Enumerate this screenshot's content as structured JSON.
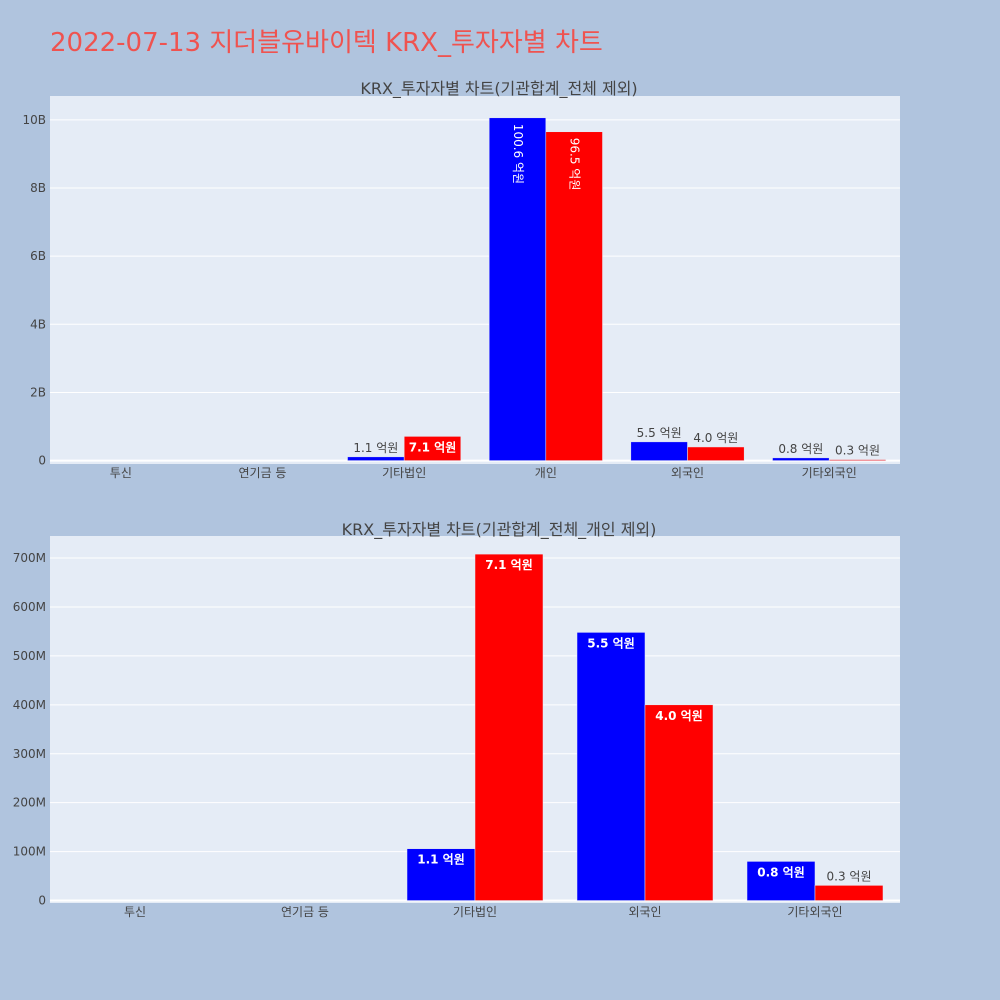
{
  "page": {
    "title": "2022-07-13 지더블유바이텍 KRX_투자자별 차트"
  },
  "colors": {
    "background": "#b0c4de",
    "plot_bg": "#e5ecf6",
    "gridline": "#ffffff",
    "series_blue": "#0000ff",
    "series_red": "#ff0000",
    "title_color": "#ef5350",
    "text": "#444444"
  },
  "chart_data": [
    {
      "type": "bar",
      "title": "KRX_투자자별 차트(기관합계_전체 제외)",
      "categories": [
        "투신",
        "연기금 등",
        "기타법인",
        "개인",
        "외국인",
        "기타외국인"
      ],
      "ylim": [
        -100000000,
        10700000000
      ],
      "y_ticks": [
        0,
        2000000000,
        4000000000,
        6000000000,
        8000000000,
        10000000000
      ],
      "y_tick_labels": [
        "0",
        "2B",
        "4B",
        "6B",
        "8B",
        "10B"
      ],
      "grid": true,
      "series": [
        {
          "color": "#0000ff",
          "values": [
            0,
            0,
            110000000,
            10060000000,
            550000000,
            80000000
          ],
          "labels": [
            "",
            "",
            "1.1 억원",
            "100.6 억원",
            "5.5 억원",
            "0.8 억원"
          ]
        },
        {
          "color": "#ff0000",
          "values": [
            0,
            0,
            710000000,
            9650000000,
            400000000,
            30000000
          ],
          "labels": [
            "",
            "",
            "7.1 억원",
            "96.5 억원",
            "4.0 억원",
            "0.3 억원"
          ]
        }
      ]
    },
    {
      "type": "bar",
      "title": "KRX_투자자별 차트(기관합계_전체_개인 제외)",
      "categories": [
        "투신",
        "연기금 등",
        "기타법인",
        "외국인",
        "기타외국인"
      ],
      "ylim": [
        -5000000,
        745000000
      ],
      "y_ticks": [
        0,
        100000000,
        200000000,
        300000000,
        400000000,
        500000000,
        600000000,
        700000000
      ],
      "y_tick_labels": [
        "0",
        "100M",
        "200M",
        "300M",
        "400M",
        "500M",
        "600M",
        "700M"
      ],
      "grid": true,
      "series": [
        {
          "color": "#0000ff",
          "values": [
            0,
            0,
            106000000,
            548000000,
            80000000
          ],
          "labels": [
            "",
            "",
            "1.1 억원",
            "5.5 억원",
            "0.8 억원"
          ]
        },
        {
          "color": "#ff0000",
          "values": [
            0,
            0,
            708000000,
            400000000,
            31000000
          ],
          "labels": [
            "",
            "",
            "7.1 억원",
            "4.0 억원",
            "0.3 억원"
          ]
        }
      ]
    }
  ]
}
